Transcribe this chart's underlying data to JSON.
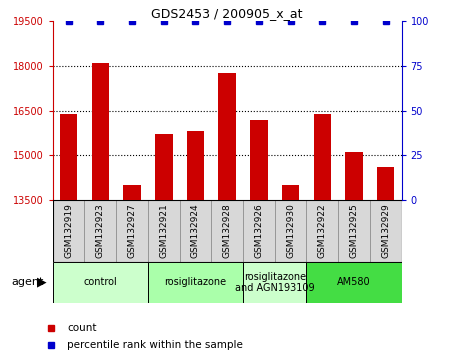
{
  "title": "GDS2453 / 200905_x_at",
  "samples": [
    "GSM132919",
    "GSM132923",
    "GSM132927",
    "GSM132921",
    "GSM132924",
    "GSM132928",
    "GSM132926",
    "GSM132930",
    "GSM132922",
    "GSM132925",
    "GSM132929"
  ],
  "counts": [
    16400,
    18100,
    14000,
    15700,
    15800,
    17750,
    16200,
    14000,
    16400,
    15100,
    14600
  ],
  "percentile_ranks": [
    100,
    100,
    100,
    100,
    100,
    100,
    100,
    100,
    100,
    100,
    100
  ],
  "ylim_left": [
    13500,
    19500
  ],
  "ylim_right": [
    0,
    100
  ],
  "yticks_left": [
    13500,
    15000,
    16500,
    18000,
    19500
  ],
  "yticks_right": [
    0,
    25,
    50,
    75,
    100
  ],
  "bar_color": "#cc0000",
  "dot_color": "#0000cc",
  "bar_width": 0.55,
  "groups": [
    {
      "label": "control",
      "indices": [
        0,
        1,
        2
      ],
      "color": "#ccffcc"
    },
    {
      "label": "rosiglitazone",
      "indices": [
        3,
        4,
        5
      ],
      "color": "#aaffaa"
    },
    {
      "label": "rosiglitazone\nand AGN193109",
      "indices": [
        6,
        7
      ],
      "color": "#ccffcc"
    },
    {
      "label": "AM580",
      "indices": [
        8,
        9,
        10
      ],
      "color": "#44dd44"
    }
  ],
  "legend_count_label": "count",
  "legend_pct_label": "percentile rank within the sample",
  "agent_label": "agent",
  "tick_color_left": "#cc0000",
  "tick_color_right": "#0000cc",
  "gridline_ticks": [
    15000,
    16500,
    18000
  ],
  "xlabels_facecolor": "#d8d8d8",
  "xlabels_edgecolor": "#888888"
}
